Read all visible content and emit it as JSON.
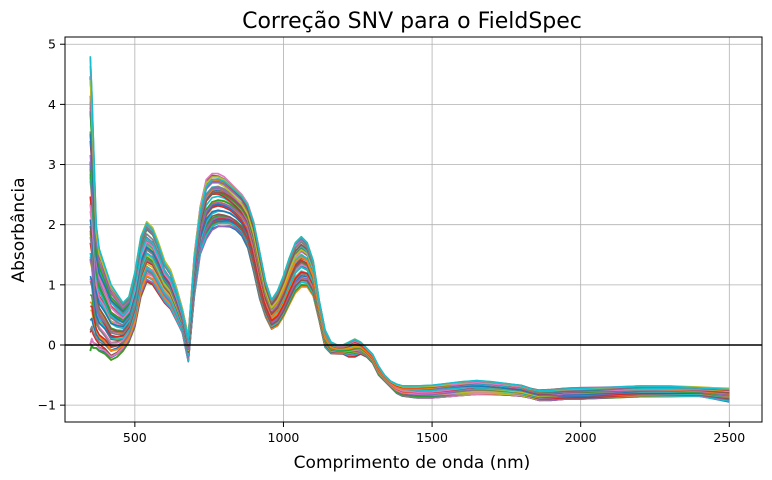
{
  "chart_data": {
    "type": "line",
    "title": "Correção SNV para o FieldSpec",
    "xlabel": "Comprimento de onda (nm)",
    "ylabel": "Absorbância",
    "xlim": [
      265,
      2610
    ],
    "ylim": [
      -1.28,
      5.12
    ],
    "xticks": [
      500,
      1000,
      1500,
      2000,
      2500
    ],
    "yticks": [
      -1,
      0,
      1,
      2,
      3,
      4,
      5
    ],
    "xtick_labels": [
      "500",
      "1000",
      "1500",
      "2000",
      "2500"
    ],
    "ytick_labels": [
      "−1",
      "0",
      "1",
      "2",
      "3",
      "4",
      "5"
    ],
    "grid": true,
    "reference_line_y": 0,
    "series_count": 60,
    "palette": [
      "#1f77b4",
      "#ff7f0e",
      "#2ca02c",
      "#d62728",
      "#9467bd",
      "#8c564b",
      "#e377c2",
      "#7f7f7f",
      "#bcbd22",
      "#17becf"
    ],
    "series_envelope": {
      "wavelength_nm": [
        350,
        355,
        360,
        370,
        380,
        400,
        420,
        440,
        460,
        480,
        500,
        520,
        540,
        560,
        580,
        600,
        620,
        640,
        660,
        680,
        700,
        720,
        740,
        760,
        780,
        800,
        820,
        840,
        860,
        880,
        900,
        920,
        940,
        960,
        980,
        1000,
        1020,
        1040,
        1060,
        1080,
        1100,
        1120,
        1140,
        1160,
        1180,
        1200,
        1220,
        1240,
        1260,
        1280,
        1300,
        1320,
        1340,
        1360,
        1380,
        1400,
        1450,
        1500,
        1550,
        1600,
        1650,
        1700,
        1750,
        1800,
        1830,
        1860,
        1900,
        1950,
        2000,
        2100,
        2200,
        2300,
        2400,
        2500
      ],
      "absorbance_low": [
        -0.1,
        0.0,
        -0.05,
        -0.05,
        -0.1,
        -0.15,
        -0.25,
        -0.2,
        -0.1,
        0.05,
        0.3,
        0.8,
        1.05,
        1.0,
        0.85,
        0.7,
        0.6,
        0.4,
        0.2,
        -0.28,
        0.8,
        1.5,
        1.75,
        1.9,
        1.95,
        1.95,
        1.95,
        1.9,
        1.8,
        1.6,
        1.2,
        0.75,
        0.45,
        0.25,
        0.3,
        0.45,
        0.65,
        0.85,
        0.95,
        0.95,
        0.8,
        0.4,
        -0.05,
        -0.15,
        -0.15,
        -0.15,
        -0.2,
        -0.2,
        -0.15,
        -0.2,
        -0.3,
        -0.5,
        -0.6,
        -0.7,
        -0.8,
        -0.85,
        -0.88,
        -0.88,
        -0.86,
        -0.84,
        -0.82,
        -0.82,
        -0.83,
        -0.85,
        -0.88,
        -0.92,
        -0.92,
        -0.9,
        -0.9,
        -0.88,
        -0.86,
        -0.86,
        -0.86,
        -0.95
      ],
      "absorbance_high": [
        4.8,
        4.2,
        3.5,
        2.0,
        1.6,
        1.3,
        1.0,
        0.85,
        0.7,
        0.8,
        1.2,
        1.8,
        2.05,
        1.95,
        1.7,
        1.4,
        1.25,
        0.95,
        0.6,
        0.15,
        1.5,
        2.3,
        2.75,
        2.85,
        2.85,
        2.8,
        2.7,
        2.6,
        2.5,
        2.35,
        2.05,
        1.55,
        1.05,
        0.75,
        0.9,
        1.15,
        1.45,
        1.7,
        1.8,
        1.7,
        1.4,
        0.75,
        0.25,
        0.05,
        0.0,
        0.0,
        0.05,
        0.1,
        0.05,
        -0.05,
        -0.15,
        -0.35,
        -0.5,
        -0.6,
        -0.65,
        -0.68,
        -0.68,
        -0.67,
        -0.64,
        -0.61,
        -0.59,
        -0.61,
        -0.64,
        -0.67,
        -0.72,
        -0.75,
        -0.74,
        -0.72,
        -0.71,
        -0.7,
        -0.68,
        -0.68,
        -0.7,
        -0.72
      ]
    }
  }
}
